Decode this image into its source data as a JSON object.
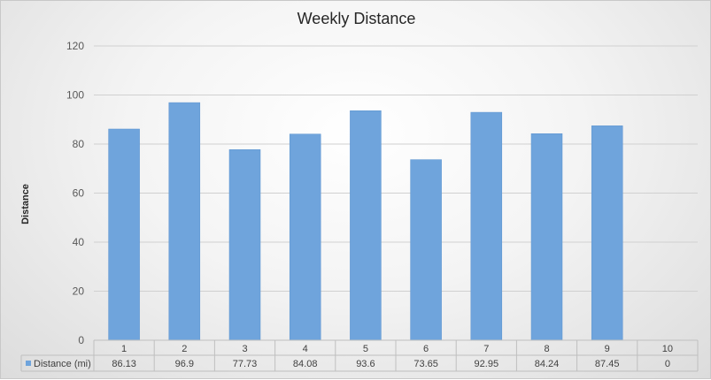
{
  "chart_data": {
    "type": "bar",
    "title": "Weekly Distance",
    "ylabel": "Distance",
    "xlabel": "",
    "categories": [
      "1",
      "2",
      "3",
      "4",
      "5",
      "6",
      "7",
      "8",
      "9",
      "10"
    ],
    "series": [
      {
        "name": "Distance (mi)",
        "values": [
          86.13,
          96.9,
          77.73,
          84.08,
          93.6,
          73.65,
          92.95,
          84.24,
          87.45,
          0
        ],
        "value_labels": [
          "86.13",
          "96.9",
          "77.73",
          "84.08",
          "93.6",
          "73.65",
          "92.95",
          "84.24",
          "87.45",
          "0"
        ],
        "color": "#6fa4dc"
      }
    ],
    "ylim": [
      0,
      120
    ],
    "yticks": [
      0,
      20,
      40,
      60,
      80,
      100,
      120
    ],
    "grid": true,
    "legend": "data-table"
  }
}
